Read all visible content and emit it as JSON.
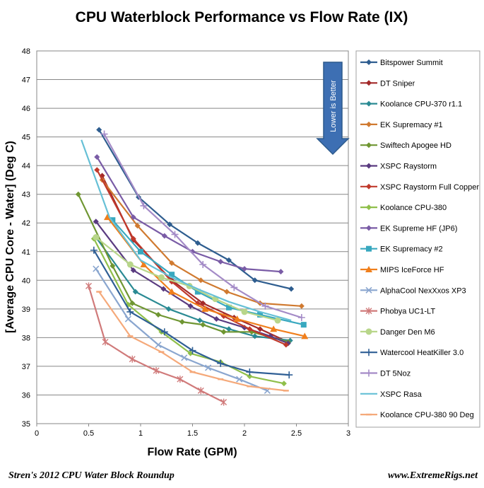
{
  "footer": {
    "left": "Stren's 2012  CPU Water Block Roundup",
    "right": "www.ExtremeRigs.net"
  },
  "annotation": {
    "arrow_text": "Lower is Better",
    "arrow_color": "#3d6fb3"
  },
  "chart_data": {
    "type": "line",
    "title": "CPU Waterblock Performance vs Flow Rate  (IX)",
    "xlabel": "Flow Rate (GPM)",
    "ylabel": "[Average CPU Core - Water] (Deg C)",
    "xlim": [
      0,
      3
    ],
    "ylim": [
      35,
      48
    ],
    "xticks": [
      "0",
      "0.5",
      "1",
      "1.5",
      "2",
      "2.5",
      "3"
    ],
    "yticks": [
      "35",
      "36",
      "37",
      "38",
      "39",
      "40",
      "41",
      "42",
      "43",
      "44",
      "45",
      "46",
      "47",
      "48"
    ],
    "grid": "horizontal",
    "legend_position": "right",
    "series": [
      {
        "name": "Bitspower Summit",
        "color": "#2e5d8f",
        "marker": "diamond",
        "x": [
          0.6,
          0.98,
          1.28,
          1.55,
          1.85,
          2.1,
          2.45
        ],
        "y": [
          45.25,
          42.9,
          41.95,
          41.3,
          40.7,
          40.0,
          39.7
        ]
      },
      {
        "name": "DT Sniper",
        "color": "#a32a2a",
        "marker": "diamond",
        "x": [
          0.63,
          0.93,
          1.3,
          1.6,
          1.9,
          2.15,
          2.42
        ],
        "y": [
          43.65,
          41.4,
          40.0,
          39.2,
          38.7,
          38.3,
          37.85
        ]
      },
      {
        "name": "Koolance CPU-370 r1.1",
        "color": "#2a8a93",
        "marker": "diamond",
        "x": [
          0.57,
          0.95,
          1.27,
          1.57,
          1.85,
          2.1,
          2.44
        ],
        "y": [
          41.5,
          39.6,
          39.0,
          38.6,
          38.3,
          38.05,
          37.9
        ]
      },
      {
        "name": "EK Supremacy #1",
        "color": "#d07a30",
        "marker": "diamond",
        "x": [
          0.63,
          0.97,
          1.3,
          1.58,
          1.83,
          2.15,
          2.55
        ],
        "y": [
          43.5,
          41.9,
          40.6,
          40.0,
          39.6,
          39.2,
          39.1
        ]
      },
      {
        "name": "Swiftech Apogee HD",
        "color": "#6f9632",
        "marker": "diamond",
        "x": [
          0.4,
          0.73,
          0.92,
          1.17,
          1.4,
          1.6,
          1.8,
          2.07,
          2.42
        ],
        "y": [
          43.0,
          40.5,
          39.2,
          38.8,
          38.55,
          38.45,
          38.2,
          38.2,
          37.85
        ]
      },
      {
        "name": "XSPC Raystorm",
        "color": "#5a3b80",
        "marker": "diamond",
        "x": [
          0.57,
          0.93,
          1.22,
          1.48,
          1.73,
          2.0,
          2.25,
          2.42
        ],
        "y": [
          42.05,
          40.35,
          39.7,
          39.1,
          38.65,
          38.35,
          38.05,
          37.8
        ]
      },
      {
        "name": "XSPC Raystorm  Full Copper",
        "color": "#c0392b",
        "marker": "diamond",
        "x": [
          0.58,
          0.93,
          1.3,
          1.55,
          1.8,
          2.05,
          2.4
        ],
        "y": [
          43.85,
          41.45,
          39.95,
          39.2,
          38.75,
          38.3,
          37.75
        ]
      },
      {
        "name": "Koolance CPU-380",
        "color": "#8fbf4a",
        "marker": "diamond",
        "x": [
          0.55,
          0.88,
          1.2,
          1.48,
          1.77,
          2.05,
          2.38
        ],
        "y": [
          41.45,
          39.15,
          38.2,
          37.45,
          37.15,
          36.65,
          36.4
        ]
      },
      {
        "name": "EK Supreme HF (JP6)",
        "color": "#7a5ca6",
        "marker": "diamond",
        "x": [
          0.58,
          0.93,
          1.23,
          1.5,
          1.77,
          2.0,
          2.35
        ],
        "y": [
          44.3,
          42.2,
          41.55,
          41.0,
          40.65,
          40.4,
          40.3
        ]
      },
      {
        "name": "EK Supremacy #2",
        "color": "#38a8bf",
        "marker": "square",
        "x": [
          0.73,
          1.0,
          1.3,
          1.55,
          1.85,
          2.15,
          2.57
        ],
        "y": [
          42.1,
          41.0,
          40.2,
          39.6,
          39.05,
          38.8,
          38.45
        ]
      },
      {
        "name": "MIPS IceForce HF",
        "color": "#f07f1c",
        "marker": "triangle",
        "x": [
          0.68,
          1.03,
          1.3,
          1.62,
          1.93,
          2.28,
          2.58
        ],
        "y": [
          42.2,
          40.55,
          39.6,
          39.0,
          38.65,
          38.3,
          38.05
        ]
      },
      {
        "name": "AlphaCool NexXxos XP3",
        "color": "#8aa6cf",
        "marker": "x",
        "x": [
          0.57,
          0.88,
          1.17,
          1.42,
          1.65,
          1.95,
          2.22
        ],
        "y": [
          40.4,
          38.65,
          37.75,
          37.3,
          36.95,
          36.55,
          36.15
        ]
      },
      {
        "name": "Phobya UC1-LT",
        "color": "#d07a7a",
        "marker": "star",
        "x": [
          0.5,
          0.66,
          0.92,
          1.15,
          1.38,
          1.58,
          1.8
        ],
        "y": [
          39.8,
          37.85,
          37.25,
          36.85,
          36.55,
          36.15,
          35.75
        ]
      },
      {
        "name": "Danger Den M6",
        "color": "#b8d68a",
        "marker": "circle",
        "x": [
          0.57,
          0.9,
          1.2,
          1.47,
          1.72,
          2.0,
          2.32
        ],
        "y": [
          41.5,
          40.55,
          40.1,
          39.8,
          39.35,
          38.9,
          38.6
        ]
      },
      {
        "name": "Watercool HeatKiller 3.0",
        "color": "#2f5f95",
        "marker": "plus",
        "x": [
          0.55,
          0.9,
          1.23,
          1.5,
          1.77,
          2.05,
          2.43
        ],
        "y": [
          41.05,
          38.9,
          38.2,
          37.55,
          37.1,
          36.8,
          36.7
        ]
      },
      {
        "name": "DT 5Noz",
        "color": "#a48bc7",
        "marker": "plus",
        "x": [
          0.65,
          1.03,
          1.33,
          1.6,
          1.9,
          2.2,
          2.55
        ],
        "y": [
          45.1,
          42.6,
          41.6,
          40.55,
          39.75,
          39.1,
          38.7
        ]
      },
      {
        "name": "XSPC Rasa",
        "color": "#66c0d6",
        "marker": "none",
        "x": [
          0.43,
          0.7,
          1.0,
          1.3,
          1.58,
          1.85,
          2.15,
          2.45
        ],
        "y": [
          44.9,
          42.2,
          40.7,
          40.1,
          39.65,
          39.25,
          38.9,
          38.6
        ]
      },
      {
        "name": "Koolance CPU-380 90 Deg",
        "color": "#f5a97a",
        "marker": "dash",
        "x": [
          0.6,
          0.9,
          1.2,
          1.5,
          1.77,
          2.05,
          2.4
        ],
        "y": [
          39.6,
          38.05,
          37.5,
          36.8,
          36.55,
          36.3,
          36.15
        ]
      }
    ]
  }
}
